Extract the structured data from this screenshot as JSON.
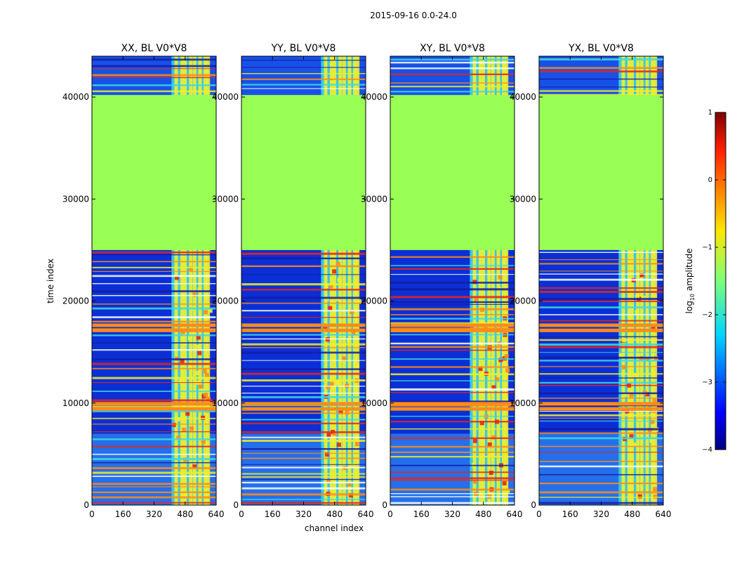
{
  "figure": {
    "suptitle": "2015-09-16 0.0-24.0",
    "xlabel": "channel index",
    "ylabel": "time index"
  },
  "colors": {
    "flagged_fill": "#99ff55",
    "background_low": "#0b2fd6",
    "band_orange": "#ff8c1a",
    "band_red": "#e8241a",
    "band_yellow": "#f2ee2a",
    "band_cyan": "#3fd8e0",
    "frame": "#000000"
  },
  "chart_data": {
    "type": "heatmap",
    "panels": [
      {
        "title": "XX, BL V0*V8",
        "polarization": "XX",
        "baseline": "V0*V8"
      },
      {
        "title": "YY, BL V0*V8",
        "polarization": "YY",
        "baseline": "V0*V8"
      },
      {
        "title": "XY, BL V0*V8",
        "polarization": "XY",
        "baseline": "V0*V8"
      },
      {
        "title": "YX, BL V0*V8",
        "polarization": "YX",
        "baseline": "V0*V8"
      }
    ],
    "xlim": [
      0,
      640
    ],
    "ylim": [
      0,
      44000
    ],
    "xticks": [
      0,
      160,
      320,
      480,
      640
    ],
    "yticks": [
      0,
      10000,
      20000,
      30000,
      40000
    ],
    "flagged_time_range": [
      25000,
      40200
    ],
    "rfi_channel_range": [
      410,
      600
    ],
    "colorbar": {
      "label": "log10 amplitude",
      "label_main": "log",
      "label_sub": "10",
      "label_rest": " amplitude",
      "range": [
        -4,
        1
      ],
      "ticks": [
        1,
        0,
        -1,
        -2,
        -3,
        -4
      ],
      "tick_labels": [
        "1",
        "0",
        "−1",
        "−2",
        "−3",
        "−4"
      ]
    }
  }
}
